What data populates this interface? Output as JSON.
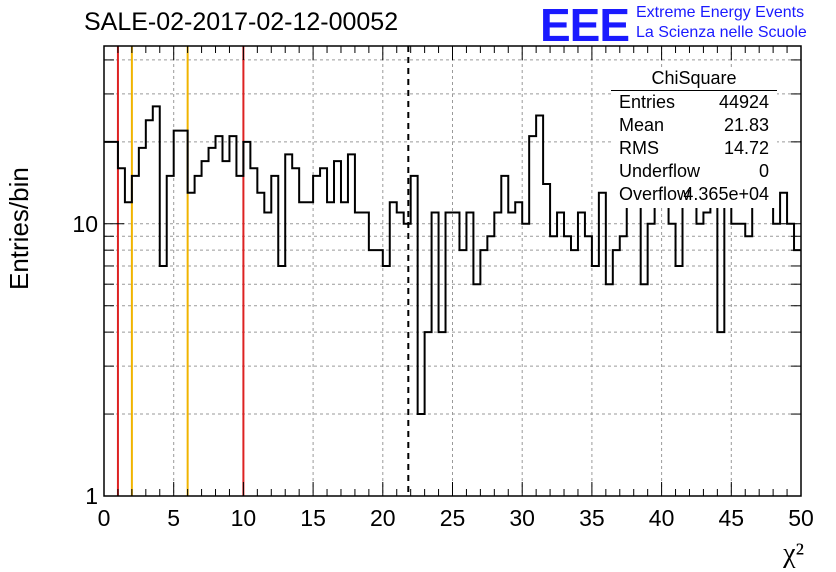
{
  "title": "SALE-02-2017-02-12-00052",
  "logo": {
    "letters": "EEE",
    "line1": "Extreme Energy Events",
    "line2": "La Scienza nelle Scuole"
  },
  "stats_box": {
    "title": "ChiSquare",
    "rows": [
      {
        "label": "Entries",
        "value": "44924"
      },
      {
        "label": "Mean",
        "value": "21.83"
      },
      {
        "label": "RMS",
        "value": "14.72"
      },
      {
        "label": "Underflow",
        "value": "0"
      },
      {
        "label": "Overflow",
        "value": "4.365e+04"
      }
    ]
  },
  "chart_data": {
    "type": "histogram",
    "title": "SALE-02-2017-02-12-00052",
    "xlabel": "χ²",
    "ylabel": "Entries/bin",
    "xlim": [
      0,
      50
    ],
    "ylim": [
      1,
      45
    ],
    "yscale": "log",
    "grid": true,
    "bin_width": 0.5,
    "x_ticks": [
      0,
      5,
      10,
      15,
      20,
      25,
      30,
      35,
      40,
      45,
      50
    ],
    "y_ticks": [
      1,
      10
    ],
    "values": [
      20,
      20,
      16,
      12,
      15,
      19,
      24,
      27,
      7,
      15,
      22,
      22,
      13,
      15,
      17,
      19,
      21,
      17,
      21,
      15,
      20,
      16,
      13,
      11,
      15,
      7,
      18,
      16,
      12,
      12,
      15,
      16,
      12,
      17,
      12,
      18,
      11,
      11,
      8,
      8,
      7,
      12,
      11,
      10,
      15,
      2,
      4,
      11,
      4,
      11,
      11,
      8,
      11,
      6,
      8,
      9,
      11,
      15,
      11,
      12,
      10,
      21,
      25,
      14,
      9,
      11,
      9,
      8,
      11,
      9,
      7,
      13,
      6,
      8,
      9,
      12,
      14,
      6,
      10,
      12,
      14,
      10,
      7,
      13,
      12,
      10,
      11,
      12,
      4,
      12,
      10,
      10,
      9,
      12,
      13,
      12,
      10,
      13,
      10,
      8
    ],
    "vertical_lines": [
      {
        "x": 1,
        "color": "#dd2222",
        "style": "solid"
      },
      {
        "x": 2,
        "color": "#f0b400",
        "style": "solid"
      },
      {
        "x": 6,
        "color": "#f0b400",
        "style": "solid"
      },
      {
        "x": 10,
        "color": "#dd2222",
        "style": "solid"
      },
      {
        "x": 21.83,
        "color": "#000000",
        "style": "dashed"
      }
    ]
  }
}
